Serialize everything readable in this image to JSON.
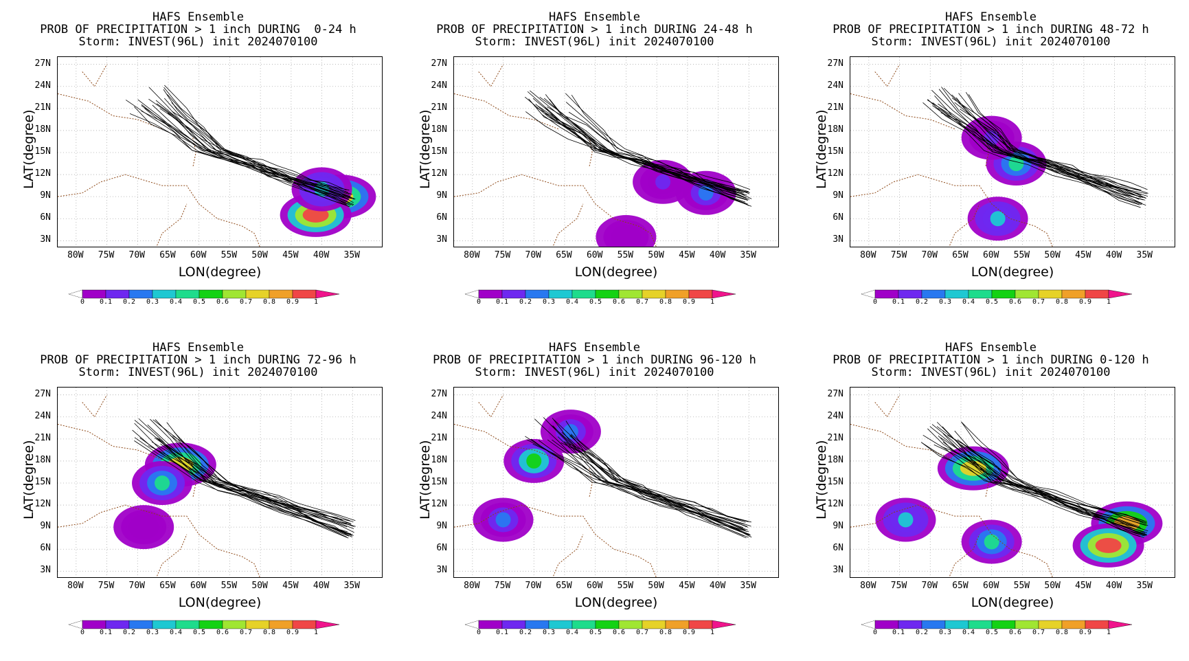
{
  "panels": [
    {
      "title": "HAFS Ensemble",
      "subtitle": "PROB OF PRECIPITATION > 1 inch DURING  0-24 h",
      "storm": "Storm: INVEST(96L) init 2024070100"
    },
    {
      "title": "HAFS Ensemble",
      "subtitle": "PROB OF PRECIPITATION > 1 inch DURING 24-48 h",
      "storm": "Storm: INVEST(96L) init 2024070100"
    },
    {
      "title": "HAFS Ensemble",
      "subtitle": "PROB OF PRECIPITATION > 1 inch DURING 48-72 h",
      "storm": "Storm: INVEST(96L) init 2024070100"
    },
    {
      "title": "HAFS Ensemble",
      "subtitle": "PROB OF PRECIPITATION > 1 inch DURING 72-96 h",
      "storm": "Storm: INVEST(96L) init 2024070100"
    },
    {
      "title": "HAFS Ensemble",
      "subtitle": "PROB OF PRECIPITATION > 1 inch DURING 96-120 h",
      "storm": "Storm: INVEST(96L) init 2024070100"
    },
    {
      "title": "HAFS Ensemble",
      "subtitle": "PROB OF PRECIPITATION > 1 inch DURING 0-120 h",
      "storm": "Storm: INVEST(96L) init 2024070100"
    }
  ],
  "axes": {
    "xlabel": "LON(degree)",
    "ylabel": "LAT(degree)",
    "xticks": [
      "80W",
      "75W",
      "70W",
      "65W",
      "60W",
      "55W",
      "50W",
      "45W",
      "40W",
      "35W"
    ],
    "yticks": [
      "27N",
      "24N",
      "21N",
      "18N",
      "15N",
      "12N",
      "9N",
      "6N",
      "3N"
    ],
    "colorbar_labels": [
      "0",
      "0.1",
      "0.2",
      "0.3",
      "0.4",
      "0.5",
      "0.6",
      "0.7",
      "0.8",
      "0.9",
      "1"
    ]
  },
  "colors": {
    "scale": [
      "#a000c8",
      "#6e28f0",
      "#2878f0",
      "#1ec8d2",
      "#1edc8c",
      "#14d214",
      "#a0e632",
      "#e6d228",
      "#f0a028",
      "#f04646"
    ],
    "over": "#f0148c",
    "coast": "#8b4513",
    "track": "#000000"
  },
  "chart_data": [
    {
      "type": "heatmap",
      "period": "0-24 h",
      "xlim": [
        -83,
        -30
      ],
      "ylim": [
        2,
        28
      ],
      "blobs": [
        {
          "lon": -37,
          "lat": 9,
          "p": 0.7
        },
        {
          "lon": -41,
          "lat": 6.5,
          "p": 0.95
        },
        {
          "lon": -40,
          "lat": 10,
          "p": 0.3
        }
      ],
      "tracks": "ensemble"
    },
    {
      "type": "heatmap",
      "period": "24-48 h",
      "xlim": [
        -83,
        -30
      ],
      "ylim": [
        2,
        28
      ],
      "blobs": [
        {
          "lon": -49,
          "lat": 11,
          "p": 0.1
        },
        {
          "lon": -42,
          "lat": 9.5,
          "p": 0.25
        },
        {
          "lon": -55,
          "lat": 3.5,
          "p": 0.05
        }
      ],
      "tracks": "ensemble"
    },
    {
      "type": "heatmap",
      "period": "48-72 h",
      "xlim": [
        -83,
        -30
      ],
      "ylim": [
        2,
        28
      ],
      "blobs": [
        {
          "lon": -56,
          "lat": 13.5,
          "p": 0.45
        },
        {
          "lon": -59,
          "lat": 6,
          "p": 0.3
        },
        {
          "lon": -60,
          "lat": 17,
          "p": 0.1
        }
      ],
      "tracks": "ensemble"
    },
    {
      "type": "heatmap",
      "period": "72-96 h",
      "xlim": [
        -83,
        -30
      ],
      "ylim": [
        2,
        28
      ],
      "blobs": [
        {
          "lon": -63,
          "lat": 17.5,
          "p": 0.7
        },
        {
          "lon": -66,
          "lat": 15,
          "p": 0.45
        },
        {
          "lon": -69,
          "lat": 9,
          "p": 0.05
        }
      ],
      "tracks": "ensemble"
    },
    {
      "type": "heatmap",
      "period": "96-120 h",
      "xlim": [
        -83,
        -30
      ],
      "ylim": [
        2,
        28
      ],
      "blobs": [
        {
          "lon": -70,
          "lat": 18,
          "p": 0.5
        },
        {
          "lon": -75,
          "lat": 10,
          "p": 0.2
        },
        {
          "lon": -64,
          "lat": 22,
          "p": 0.2
        }
      ],
      "tracks": "ensemble"
    },
    {
      "type": "heatmap",
      "period": "0-120 h",
      "xlim": [
        -83,
        -30
      ],
      "ylim": [
        2,
        28
      ],
      "blobs": [
        {
          "lon": -63,
          "lat": 17,
          "p": 0.7
        },
        {
          "lon": -38,
          "lat": 9.5,
          "p": 0.85
        },
        {
          "lon": -41,
          "lat": 6.5,
          "p": 0.95
        },
        {
          "lon": -60,
          "lat": 7,
          "p": 0.4
        },
        {
          "lon": -74,
          "lat": 10,
          "p": 0.3
        }
      ],
      "tracks": "ensemble"
    }
  ]
}
